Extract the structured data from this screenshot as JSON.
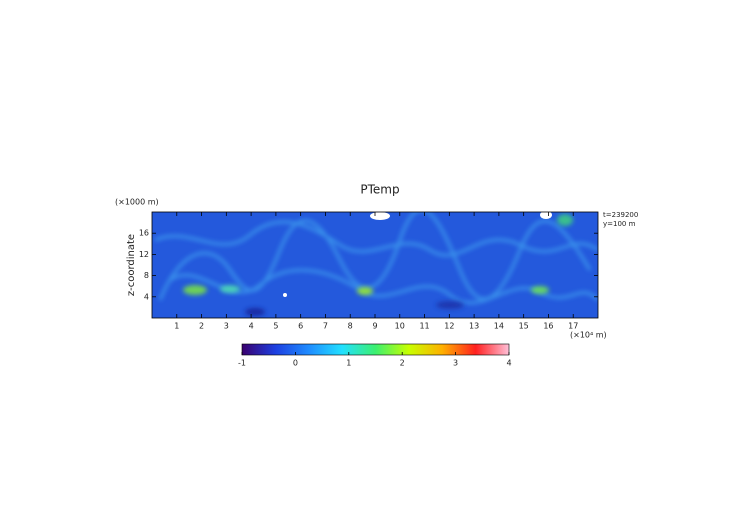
{
  "chart_data": {
    "type": "heatmap",
    "title": "PTemp",
    "y_label": "z-coordinate",
    "y_unit": "(×1000 m)",
    "x_unit": "(×10⁴ m)",
    "annotations": [
      "t=239200",
      "y=100 m"
    ],
    "xlim": [
      0,
      18
    ],
    "xticks": [
      1,
      2,
      3,
      4,
      5,
      6,
      7,
      8,
      9,
      10,
      11,
      12,
      13,
      14,
      15,
      16,
      17
    ],
    "ylim": [
      0,
      20
    ],
    "yticks": [
      4,
      8,
      12,
      16
    ],
    "colorbar": {
      "lim": [
        -1,
        4
      ],
      "ticks": [
        -1,
        0,
        1,
        2,
        3,
        4
      ],
      "colors": [
        "#3a006e",
        "#1d3fe0",
        "#1f8cff",
        "#22e0ff",
        "#3cf070",
        "#c8ff00",
        "#ffb000",
        "#ff2020",
        "#ffc0d8"
      ]
    }
  }
}
